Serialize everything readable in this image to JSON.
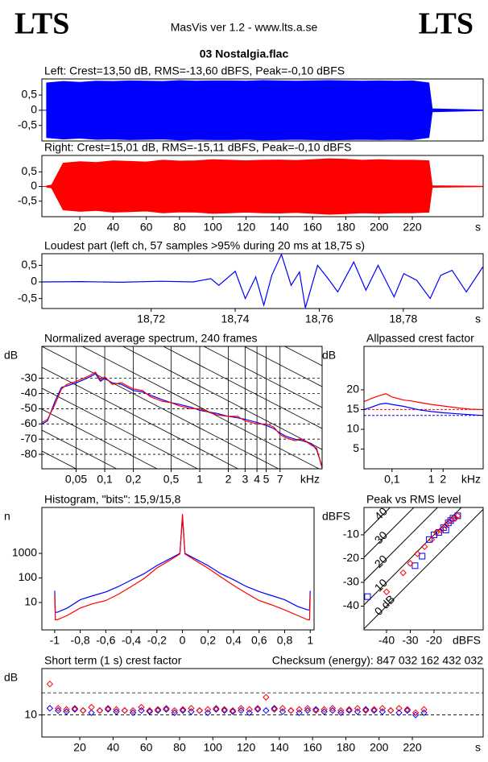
{
  "header": {
    "logo_left": "LTS",
    "app": "MasVis ver 1.2 - www.lts.a.se",
    "logo_right": "LTS",
    "file": "03 Nostalgia.flac"
  },
  "chart_data": [
    {
      "type": "waveform",
      "title": "Left: Crest=13,50 dB, RMS=-13,60 dBFS, Peak=-0,10 dBFS",
      "color": "#0000ff",
      "xlim": [
        -2.8,
        262.6
      ],
      "ylim": [
        -1.01,
        1.03
      ],
      "yticks": [
        {
          "value": 0.5,
          "label": "0,5"
        },
        0,
        {
          "value": -0.5,
          "label": "-0,5"
        }
      ],
      "x": [
        0,
        10,
        20,
        30,
        40,
        50,
        60,
        70,
        80,
        90,
        100,
        110,
        120,
        130,
        140,
        150,
        160,
        170,
        180,
        190,
        200,
        210,
        220,
        230,
        232,
        262
      ],
      "values": [
        0.9,
        0.95,
        0.92,
        0.96,
        0.95,
        0.97,
        0.96,
        0.95,
        0.98,
        0.96,
        0.97,
        0.97,
        0.96,
        0.98,
        0.97,
        0.96,
        0.97,
        0.98,
        0.97,
        0.96,
        0.97,
        0.96,
        0.97,
        0.9,
        0.05,
        0.01
      ]
    },
    {
      "type": "waveform",
      "title": "Right: Crest=15,01 dB, RMS=-15,11 dBFS, Peak=-0,10 dBFS",
      "color": "#ff0000",
      "xlim": [
        -2.8,
        262.6
      ],
      "ylim": [
        -1.03,
        1.06
      ],
      "yticks": [
        {
          "value": 0.5,
          "label": "0,5"
        },
        0,
        {
          "value": -0.5,
          "label": "-0,5"
        }
      ],
      "xticks": [
        20,
        40,
        60,
        80,
        100,
        120,
        140,
        160,
        180,
        200,
        220
      ],
      "x_unit": "s",
      "x": [
        0,
        3,
        10,
        20,
        30,
        40,
        50,
        60,
        70,
        80,
        90,
        100,
        110,
        120,
        130,
        140,
        150,
        160,
        170,
        180,
        190,
        200,
        210,
        220,
        230,
        232,
        262
      ],
      "values": [
        0.02,
        0.05,
        0.8,
        0.85,
        0.82,
        0.88,
        0.86,
        0.84,
        0.9,
        0.87,
        0.88,
        0.92,
        0.9,
        0.88,
        0.9,
        0.91,
        0.89,
        0.92,
        0.95,
        0.93,
        0.9,
        0.92,
        0.9,
        0.9,
        0.88,
        0.03,
        0.01
      ]
    },
    {
      "type": "line",
      "title": "Loudest part (left  ch, 57 samples >95% during 20 ms at 18,75 s)",
      "xlim": [
        18.694,
        18.799
      ],
      "ylim": [
        -0.8,
        0.85
      ],
      "x_unit": "s",
      "yticks": [
        {
          "value": 0.5,
          "label": "0,5"
        },
        0,
        {
          "value": -0.5,
          "label": "-0,5"
        }
      ],
      "xticks": [
        {
          "value": 18.72,
          "label": "18,72"
        },
        {
          "value": 18.74,
          "label": "18,74"
        },
        {
          "value": 18.76,
          "label": "18,76"
        },
        {
          "value": 18.78,
          "label": "18,78"
        }
      ],
      "x": [
        18.694,
        18.7032,
        18.7127,
        18.7223,
        18.73,
        18.7342,
        18.7361,
        18.74,
        18.7424,
        18.7449,
        18.7468,
        18.7487,
        18.751,
        18.7533,
        18.7553,
        18.7567,
        18.7596,
        18.7621,
        18.7644,
        18.7682,
        18.7711,
        18.774,
        18.7778,
        18.7801,
        18.7832,
        18.7864,
        18.7889,
        18.7916,
        18.795,
        18.7989
      ],
      "series": [
        {
          "name": "Left",
          "color": "#0000ff",
          "values": [
            0,
            0.01,
            -0.01,
            0.02,
            0,
            0.1,
            -0.1,
            0.32,
            -0.5,
            0.15,
            -0.7,
            0.2,
            0.83,
            -0.1,
            0.3,
            -0.78,
            0.5,
            0.1,
            -0.3,
            0.6,
            -0.25,
            0.5,
            -0.45,
            0.25,
            0.05,
            -0.5,
            0.2,
            0.35,
            -0.3,
            0.45
          ]
        }
      ]
    },
    {
      "type": "line",
      "title": "Normalized average spectrum, 240 frames",
      "y_label": "dB",
      "x_unit": "kHz",
      "xscale": "log",
      "grid": true,
      "xgrid": true,
      "slope_lines": true,
      "xlim": [
        0.0218,
        19.4
      ],
      "ylim": [
        -89.5,
        -9
      ],
      "yticks": [
        -30,
        -40,
        -50,
        -60,
        -70,
        -80
      ],
      "xticks": [
        {
          "value": 0.05,
          "label": "0,05"
        },
        {
          "value": 0.1,
          "label": "0,1"
        },
        {
          "value": 0.2,
          "label": "0,2"
        },
        {
          "value": 0.5,
          "label": "0,5"
        },
        1,
        2,
        3,
        4,
        5,
        7
      ],
      "x": [
        0.022,
        0.025,
        0.03,
        0.035,
        0.04,
        0.05,
        0.06,
        0.07,
        0.08,
        0.09,
        0.1,
        0.12,
        0.15,
        0.2,
        0.25,
        0.3,
        0.4,
        0.5,
        0.6,
        0.8,
        1,
        1.2,
        1.5,
        2,
        2.5,
        3,
        4,
        5,
        6,
        7,
        8,
        10,
        12,
        15,
        17,
        19.4
      ],
      "series": [
        {
          "name": "Left",
          "color": "#0000ff",
          "values": [
            -60,
            -58,
            -45,
            -36,
            -35,
            -33,
            -31,
            -29,
            -27,
            -32,
            -30,
            -33,
            -34,
            -38,
            -39,
            -41,
            -44,
            -46,
            -47,
            -49,
            -51,
            -52,
            -53,
            -55,
            -56,
            -57,
            -59,
            -61,
            -63,
            -66,
            -68,
            -70,
            -71,
            -73,
            -77,
            -88
          ]
        },
        {
          "name": "Right",
          "color": "#ff0000",
          "values": [
            -59,
            -57,
            -47,
            -37,
            -34,
            -32,
            -30,
            -28,
            -26,
            -31,
            -29,
            -34,
            -33,
            -37,
            -38,
            -42,
            -45,
            -46,
            -48,
            -50,
            -50,
            -52,
            -54,
            -55,
            -55,
            -58,
            -60,
            -60,
            -62,
            -67,
            -69,
            -71,
            -70,
            -74,
            -76,
            -89
          ]
        }
      ]
    },
    {
      "type": "line",
      "title": "Allpassed crest factor",
      "y_label": "dB",
      "x_unit": "kHz",
      "xscale": "log",
      "xlim": [
        0.0193,
        21
      ],
      "ylim": [
        0,
        31
      ],
      "yticks": [
        20,
        15,
        10,
        5
      ],
      "xticks": [
        {
          "value": 0.1,
          "label": "0,1"
        },
        1,
        2
      ],
      "ref_lines": [
        {
          "value": 13.5,
          "color": "#0000ff"
        },
        {
          "value": 15.01,
          "color": "#ff0000"
        }
      ],
      "x": [
        0.0193,
        0.03,
        0.05,
        0.07,
        0.1,
        0.2,
        0.3,
        0.5,
        1,
        2,
        5,
        10,
        21
      ],
      "series": [
        {
          "name": "Left",
          "color": "#0000ff",
          "values": [
            15,
            15.6,
            16.4,
            16.6,
            16.3,
            15.8,
            15.4,
            14.9,
            14.5,
            14.2,
            13.9,
            13.7,
            13.5
          ]
        },
        {
          "name": "Right",
          "color": "#ff0000",
          "values": [
            17,
            17.8,
            18.6,
            19,
            18.2,
            17.4,
            17.2,
            16.8,
            16.3,
            15.9,
            15.4,
            15.1,
            15
          ]
        }
      ]
    },
    {
      "type": "line",
      "title": "Histogram, \"bits\": 15,9/15,8",
      "y_label": "n",
      "yscale": "log",
      "xlim": [
        -1.1,
        1.03
      ],
      "ylim": [
        0.77,
        74000
      ],
      "yticks": [
        1000,
        100,
        10
      ],
      "xticks": [
        -1,
        {
          "value": -0.8,
          "label": "-0,8"
        },
        {
          "value": -0.6,
          "label": "-0,6"
        },
        {
          "value": -0.4,
          "label": "-0,4"
        },
        {
          "value": -0.2,
          "label": "-0,2"
        },
        0,
        {
          "value": 0.2,
          "label": "0,2"
        },
        {
          "value": 0.4,
          "label": "0,4"
        },
        {
          "value": 0.6,
          "label": "0,6"
        },
        {
          "value": 0.8,
          "label": "0,8"
        },
        1
      ],
      "x": [
        -1,
        -0.995,
        -0.98,
        -0.9,
        -0.8,
        -0.7,
        -0.6,
        -0.5,
        -0.4,
        -0.3,
        -0.2,
        -0.1,
        -0.02,
        0,
        0.02,
        0.1,
        0.2,
        0.3,
        0.4,
        0.5,
        0.6,
        0.7,
        0.8,
        0.9,
        0.98,
        0.995,
        1
      ],
      "series": [
        {
          "name": "Left",
          "color": "#0000ff",
          "values": [
            30,
            4,
            4,
            6,
            13,
            19,
            27,
            45,
            83,
            150,
            320,
            600,
            1000,
            30000,
            1000,
            600,
            320,
            150,
            85,
            45,
            28,
            19,
            13,
            7,
            5,
            5,
            30
          ]
        },
        {
          "name": "Right",
          "color": "#ff0000",
          "values": [
            20,
            2,
            2,
            3,
            6,
            9,
            12,
            22,
            45,
            95,
            256,
            520,
            950,
            40000,
            950,
            520,
            250,
            110,
            50,
            24,
            12,
            8,
            5,
            3,
            2,
            2,
            20
          ]
        }
      ]
    },
    {
      "type": "scatter",
      "title": "Peak vs RMS level",
      "y_label": "dBFS",
      "x_unit": "dBFS",
      "xlim": [
        -49.5,
        0.7
      ],
      "ylim": [
        -50,
        1.5
      ],
      "yticks": [
        -10,
        -20,
        -30,
        -40
      ],
      "xticks": [
        -40,
        -30,
        -20
      ],
      "crest_lines": [
        {
          "value": 0,
          "label": "0 dB"
        },
        {
          "value": 10,
          "label": "10"
        },
        {
          "value": 20,
          "label": "20"
        },
        {
          "value": 30,
          "label": "30"
        },
        {
          "value": 40,
          "label": "40"
        }
      ],
      "series": [
        {
          "name": "Left",
          "color": "#0000ff",
          "marker": "square",
          "x": [
            -48,
            -28,
            -25,
            -22,
            -20,
            -18,
            -16,
            -15,
            -14,
            -13,
            -12,
            -10
          ],
          "values": [
            -36,
            -23,
            -19,
            -12,
            -10,
            -9,
            -7,
            -8,
            -5,
            -4,
            -3,
            -2
          ]
        },
        {
          "name": "Right",
          "color": "#ff0000",
          "marker": "diamond",
          "x": [
            -40,
            -33,
            -30,
            -27,
            -24,
            -21,
            -19,
            -17,
            -15,
            -13,
            -11,
            -10
          ],
          "values": [
            -34,
            -26,
            -22,
            -18,
            -15,
            -12,
            -9,
            -8,
            -6,
            -4,
            -3,
            -2
          ]
        }
      ]
    },
    {
      "type": "scatter",
      "title": "Short term (1 s) crest factor",
      "annotation": "Checksum (energy):  847 032 162 432 032",
      "y_label": "dB",
      "x_unit": "s",
      "xlim": [
        -2.8,
        262.6
      ],
      "ylim": [
        0,
        31
      ],
      "yticks": [
        10
      ],
      "grid_lines": [
        10,
        20
      ],
      "xticks": [
        20,
        40,
        60,
        80,
        100,
        120,
        140,
        160,
        180,
        200,
        220
      ],
      "x": [
        2,
        7,
        12,
        17,
        22,
        27,
        32,
        37,
        42,
        47,
        52,
        57,
        62,
        67,
        72,
        77,
        82,
        87,
        92,
        97,
        102,
        107,
        112,
        117,
        122,
        127,
        132,
        137,
        142,
        147,
        152,
        157,
        162,
        167,
        172,
        177,
        182,
        187,
        192,
        197,
        202,
        207,
        212,
        217,
        222,
        227
      ],
      "series": [
        {
          "name": "Left",
          "color": "#0000ff",
          "marker": "diamond",
          "values": [
            13,
            12,
            11.5,
            12.5,
            12,
            11,
            12,
            12.5,
            11.5,
            12,
            11,
            12,
            11.5,
            12,
            12.5,
            11,
            12,
            11.5,
            12,
            11,
            12.5,
            12,
            11.5,
            12,
            11,
            12.5,
            12,
            13,
            11.5,
            12,
            11,
            12,
            12.5,
            11.5,
            12,
            11,
            12,
            11.5,
            12.5,
            12,
            11.5,
            12,
            11,
            12,
            10,
            11
          ]
        },
        {
          "name": "Right",
          "color": "#ff0000",
          "marker": "diamond",
          "values": [
            24,
            13,
            12.5,
            13,
            12,
            13.5,
            12,
            13,
            12.5,
            12,
            12,
            13.5,
            12,
            12.5,
            13,
            12,
            12.5,
            13,
            12,
            12.5,
            13,
            12.5,
            12,
            13,
            12.5,
            13,
            18,
            12.5,
            13,
            12,
            12.5,
            13,
            12,
            12.5,
            13,
            12,
            12.5,
            13,
            12,
            12.5,
            13,
            12,
            13,
            12.5,
            11,
            12.5
          ]
        }
      ]
    }
  ]
}
